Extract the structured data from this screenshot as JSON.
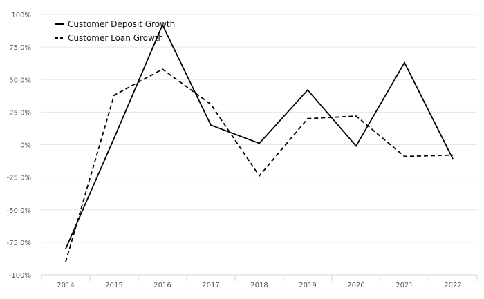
{
  "chart_data": {
    "type": "line",
    "categories": [
      "2014",
      "2015",
      "2016",
      "2017",
      "2018",
      "2019",
      "2020",
      "2021",
      "2022"
    ],
    "series": [
      {
        "name": "Customer Deposit Growth",
        "values": [
          -80,
          5,
          92,
          15,
          1,
          42,
          -1,
          63,
          -11
        ],
        "style": "solid",
        "color": "#000000"
      },
      {
        "name": "Customer Loan Growth",
        "values": [
          -90,
          38,
          58,
          31,
          -24,
          20,
          22,
          -9,
          -8
        ],
        "style": "dashed",
        "color": "#000000"
      }
    ],
    "ylim": [
      -100,
      100
    ],
    "yticks": [
      100,
      75,
      50,
      25,
      0,
      -25,
      -50,
      -75,
      -100
    ],
    "ytick_labels": [
      "100%",
      "75.0%",
      "50.0%",
      "25.0%",
      "0%",
      "-25.0%",
      "-50.0%",
      "-75.0%",
      "-100%"
    ],
    "grid": true,
    "legend_position": "top-left",
    "title": "",
    "xlabel": "",
    "ylabel": ""
  }
}
